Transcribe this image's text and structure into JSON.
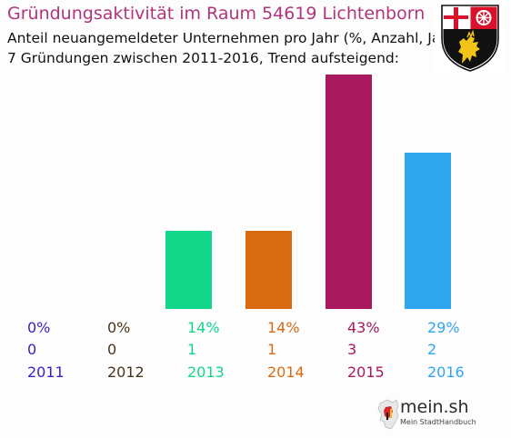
{
  "header": {
    "title": "Gründungsaktivität im Raum 54619 Lichtenborn",
    "subtitle_line1": "Anteil neuangemeldeter Unternehmen pro Jahr (%, Anzahl, Jahr)",
    "subtitle_line2": "7 Gründungen zwischen 2011-2016, Trend aufsteigend:"
  },
  "branding": {
    "logo_name": "mein.sh",
    "logo_tagline": "Mein StadtHandbuch",
    "crest_icon": "rheinland-pfalz-coat-of-arms-icon"
  },
  "chart_data": {
    "type": "bar",
    "categories": [
      "2011",
      "2012",
      "2013",
      "2014",
      "2015",
      "2016"
    ],
    "values": [
      0,
      0,
      1,
      1,
      3,
      2
    ],
    "percent_labels": [
      "0%",
      "0%",
      "14%",
      "14%",
      "43%",
      "29%"
    ],
    "count_labels": [
      "0",
      "0",
      "1",
      "1",
      "3",
      "2"
    ],
    "colors": [
      "#3a1fc4",
      "#4a3418",
      "#12d68a",
      "#d86a12",
      "#a8195e",
      "#2fa6ee"
    ],
    "ylim": [
      0,
      3
    ],
    "grid": false,
    "legend": "none"
  }
}
